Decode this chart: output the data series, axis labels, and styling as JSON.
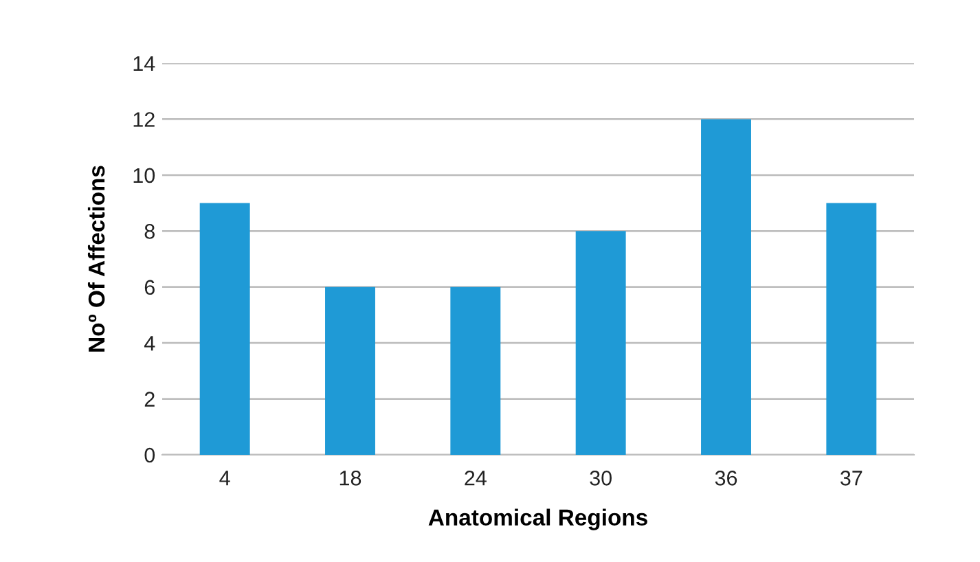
{
  "chart_data": {
    "type": "bar",
    "xlabel": "Anatomical Regions",
    "ylabel": "Noº Of Affections",
    "categories": [
      "4",
      "18",
      "24",
      "30",
      "36",
      "37"
    ],
    "values": [
      9,
      6,
      6,
      8,
      12,
      9
    ],
    "color": "#1f9ad6",
    "ylim": [
      0,
      14
    ],
    "yticks": [
      0,
      2,
      4,
      6,
      8,
      10,
      12,
      14
    ],
    "grid": "y"
  }
}
